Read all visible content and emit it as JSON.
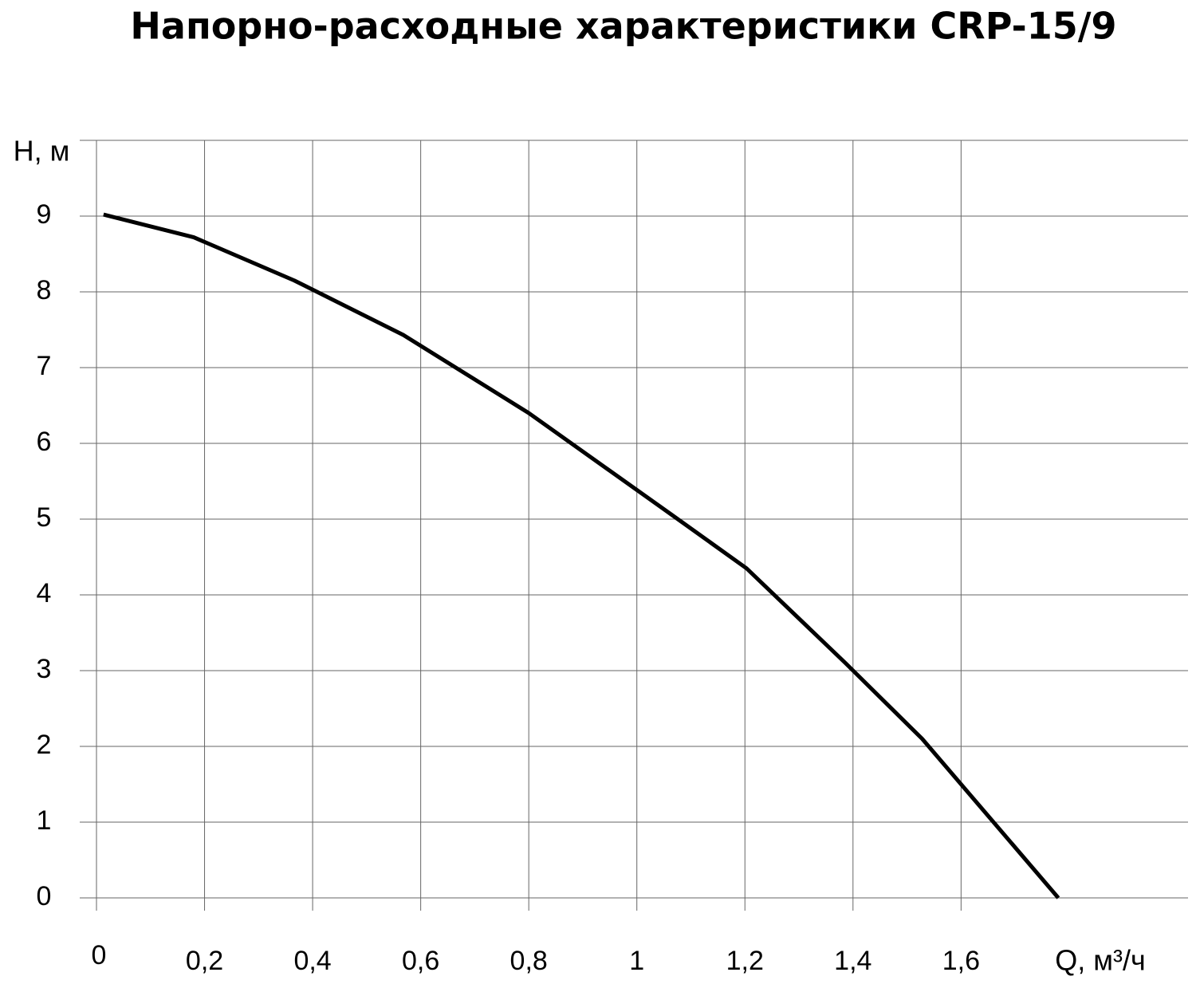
{
  "chart_data": {
    "type": "line",
    "title": "Напорно-расходные характеристики CRP-15/9",
    "x_label": "Q, м³/ч",
    "y_label": "H, м",
    "grid": true,
    "xlim": [
      0,
      2.02
    ],
    "ylim": [
      0,
      10
    ],
    "xticks": [
      0,
      {
        "value": 0.2,
        "label": "0,2"
      },
      {
        "value": 0.4,
        "label": "0,4"
      },
      {
        "value": 0.6,
        "label": "0,6"
      },
      {
        "value": 0.8,
        "label": "0,8"
      },
      1,
      {
        "value": 1.2,
        "label": "1,2"
      },
      {
        "value": 1.4,
        "label": "1,4"
      },
      {
        "value": 1.6,
        "label": "1,6"
      }
    ],
    "yticks": [
      0,
      1,
      2,
      3,
      4,
      5,
      6,
      7,
      8,
      9
    ],
    "x": [
      0.013,
      0.18,
      0.366,
      0.568,
      0.8,
      1.064,
      1.203,
      1.386,
      1.528,
      1.78
    ],
    "series": [
      {
        "color": "#000000",
        "values": [
          9.02,
          8.72,
          8.15,
          7.43,
          6.4,
          5.06,
          4.35,
          3.1,
          2.1,
          0
        ]
      }
    ]
  }
}
